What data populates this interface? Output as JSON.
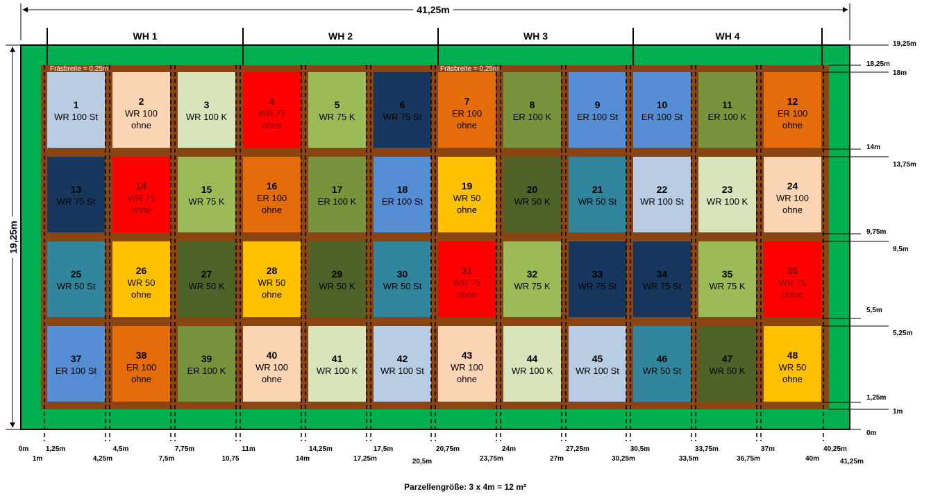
{
  "overall_width_label": "41,25m",
  "overall_height_label": "19,25m",
  "milling_width_label": "Fräsbreite = 0,25m",
  "caption": "Parzellengröße: 3 x 4m = 12 m²",
  "groups": [
    {
      "label": "WH 1"
    },
    {
      "label": "WH 2"
    },
    {
      "label": "WH 3"
    },
    {
      "label": "WH 4"
    }
  ],
  "colors": {
    "outer_border": "#00b050",
    "soil": "#8b4513",
    "light_blue": "#b8cce4",
    "peach": "#fcd5b5",
    "pale_green": "#d7e4bc",
    "red": "#ff0000",
    "green": "#9bbb59",
    "navy": "#17375e",
    "orange": "#e46c0a",
    "olive": "#77933c",
    "blue": "#558ed5",
    "gold": "#ffc000",
    "dark_olive": "#4f6228",
    "teal": "#31859c"
  },
  "plots": [
    {
      "num": "1",
      "line1": "WR 100 St",
      "line2": "",
      "color": "light_blue",
      "text_color": "#000000"
    },
    {
      "num": "2",
      "line1": "WR 100",
      "line2": "ohne",
      "color": "peach",
      "text_color": "#000000"
    },
    {
      "num": "3",
      "line1": "WR 100 K",
      "line2": "",
      "color": "pale_green",
      "text_color": "#000000"
    },
    {
      "num": "4",
      "line1": "WR 75",
      "line2": "ohne",
      "color": "red",
      "text_color": "#7f0000"
    },
    {
      "num": "5",
      "line1": "WR 75 K",
      "line2": "",
      "color": "green",
      "text_color": "#000000"
    },
    {
      "num": "6",
      "line1": "WR 75 St",
      "line2": "",
      "color": "navy",
      "text_color": "#000000"
    },
    {
      "num": "7",
      "line1": "ER 100",
      "line2": "ohne",
      "color": "orange",
      "text_color": "#000000"
    },
    {
      "num": "8",
      "line1": "ER 100 K",
      "line2": "",
      "color": "olive",
      "text_color": "#000000"
    },
    {
      "num": "9",
      "line1": "ER 100 St",
      "line2": "",
      "color": "blue",
      "text_color": "#000000"
    },
    {
      "num": "10",
      "line1": "ER 100 St",
      "line2": "",
      "color": "blue",
      "text_color": "#000000"
    },
    {
      "num": "11",
      "line1": "ER 100 K",
      "line2": "",
      "color": "olive",
      "text_color": "#000000"
    },
    {
      "num": "12",
      "line1": "ER 100",
      "line2": "ohne",
      "color": "orange",
      "text_color": "#000000"
    },
    {
      "num": "13",
      "line1": "WR 75 St",
      "line2": "",
      "color": "navy",
      "text_color": "#000000"
    },
    {
      "num": "14",
      "line1": "WR 75",
      "line2": "ohne",
      "color": "red",
      "text_color": "#7f0000"
    },
    {
      "num": "15",
      "line1": "WR 75 K",
      "line2": "",
      "color": "green",
      "text_color": "#000000"
    },
    {
      "num": "16",
      "line1": "ER 100",
      "line2": "ohne",
      "color": "orange",
      "text_color": "#000000"
    },
    {
      "num": "17",
      "line1": "ER 100 K",
      "line2": "",
      "color": "olive",
      "text_color": "#000000"
    },
    {
      "num": "18",
      "line1": "ER 100 St",
      "line2": "",
      "color": "blue",
      "text_color": "#000000"
    },
    {
      "num": "19",
      "line1": "WR 50",
      "line2": "ohne",
      "color": "gold",
      "text_color": "#000000"
    },
    {
      "num": "20",
      "line1": "WR 50 K",
      "line2": "",
      "color": "dark_olive",
      "text_color": "#000000"
    },
    {
      "num": "21",
      "line1": "WR 50 St",
      "line2": "",
      "color": "teal",
      "text_color": "#000000"
    },
    {
      "num": "22",
      "line1": "WR 100 St",
      "line2": "",
      "color": "light_blue",
      "text_color": "#000000"
    },
    {
      "num": "23",
      "line1": "WR 100 K",
      "line2": "",
      "color": "pale_green",
      "text_color": "#000000"
    },
    {
      "num": "24",
      "line1": "WR 100",
      "line2": "ohne",
      "color": "peach",
      "text_color": "#000000"
    },
    {
      "num": "25",
      "line1": "WR 50 St",
      "line2": "",
      "color": "teal",
      "text_color": "#000000"
    },
    {
      "num": "26",
      "line1": "WR 50",
      "line2": "ohne",
      "color": "gold",
      "text_color": "#000000"
    },
    {
      "num": "27",
      "line1": "WR 50 K",
      "line2": "",
      "color": "dark_olive",
      "text_color": "#000000"
    },
    {
      "num": "28",
      "line1": "WR 50",
      "line2": "ohne",
      "color": "gold",
      "text_color": "#000000"
    },
    {
      "num": "29",
      "line1": "WR 50 K",
      "line2": "",
      "color": "dark_olive",
      "text_color": "#000000"
    },
    {
      "num": "30",
      "line1": "WR 50 St",
      "line2": "",
      "color": "teal",
      "text_color": "#000000"
    },
    {
      "num": "31",
      "line1": "WR 75",
      "line2": "ohne",
      "color": "red",
      "text_color": "#7f0000"
    },
    {
      "num": "32",
      "line1": "WR 75 K",
      "line2": "",
      "color": "green",
      "text_color": "#000000"
    },
    {
      "num": "33",
      "line1": "WR 75 St",
      "line2": "",
      "color": "navy",
      "text_color": "#000000"
    },
    {
      "num": "34",
      "line1": "WR 75 St",
      "line2": "",
      "color": "navy",
      "text_color": "#000000"
    },
    {
      "num": "35",
      "line1": "WR 75 K",
      "line2": "",
      "color": "green",
      "text_color": "#000000"
    },
    {
      "num": "36",
      "line1": "WR 75",
      "line2": "ohne",
      "color": "red",
      "text_color": "#7f0000"
    },
    {
      "num": "37",
      "line1": "ER 100 St",
      "line2": "",
      "color": "blue",
      "text_color": "#000000"
    },
    {
      "num": "38",
      "line1": "ER 100",
      "line2": "ohne",
      "color": "orange",
      "text_color": "#000000"
    },
    {
      "num": "39",
      "line1": "ER 100 K",
      "line2": "",
      "color": "olive",
      "text_color": "#000000"
    },
    {
      "num": "40",
      "line1": "WR 100",
      "line2": "ohne",
      "color": "peach",
      "text_color": "#000000"
    },
    {
      "num": "41",
      "line1": "WR 100 K",
      "line2": "",
      "color": "pale_green",
      "text_color": "#000000"
    },
    {
      "num": "42",
      "line1": "WR 100 St",
      "line2": "",
      "color": "light_blue",
      "text_color": "#000000"
    },
    {
      "num": "43",
      "line1": "WR 100",
      "line2": "ohne",
      "color": "peach",
      "text_color": "#000000"
    },
    {
      "num": "44",
      "line1": "WR 100 K",
      "line2": "",
      "color": "pale_green",
      "text_color": "#000000"
    },
    {
      "num": "45",
      "line1": "WR 100 St",
      "line2": "",
      "color": "light_blue",
      "text_color": "#000000"
    },
    {
      "num": "46",
      "line1": "WR 50 St",
      "line2": "",
      "color": "teal",
      "text_color": "#000000"
    },
    {
      "num": "47",
      "line1": "WR 50 K",
      "line2": "",
      "color": "dark_olive",
      "text_color": "#000000"
    },
    {
      "num": "48",
      "line1": "WR 50",
      "line2": "ohne",
      "color": "gold",
      "text_color": "#000000"
    }
  ],
  "right_labels": [
    "19,25m",
    "18,25m",
    "18m",
    "14m",
    "13,75m",
    "9,75m",
    "9,5m",
    "5,5m",
    "5,25m",
    "1,25m",
    "1m",
    "0m"
  ],
  "bottom_labels": [
    "0m",
    "1m",
    "1,25m",
    "4,25m",
    "4,5m",
    "7,5m",
    "7,75m",
    "10,75",
    "11m",
    "14m",
    "14,25m",
    "17,25m",
    "17,5m",
    "20,5m",
    "20,75m",
    "23,75m",
    "24m",
    "27m",
    "27,25m",
    "30,25m",
    "30,5m",
    "33,5m",
    "33,75m",
    "36,75m",
    "37m",
    "40m",
    "40,25m",
    "41,25m"
  ]
}
